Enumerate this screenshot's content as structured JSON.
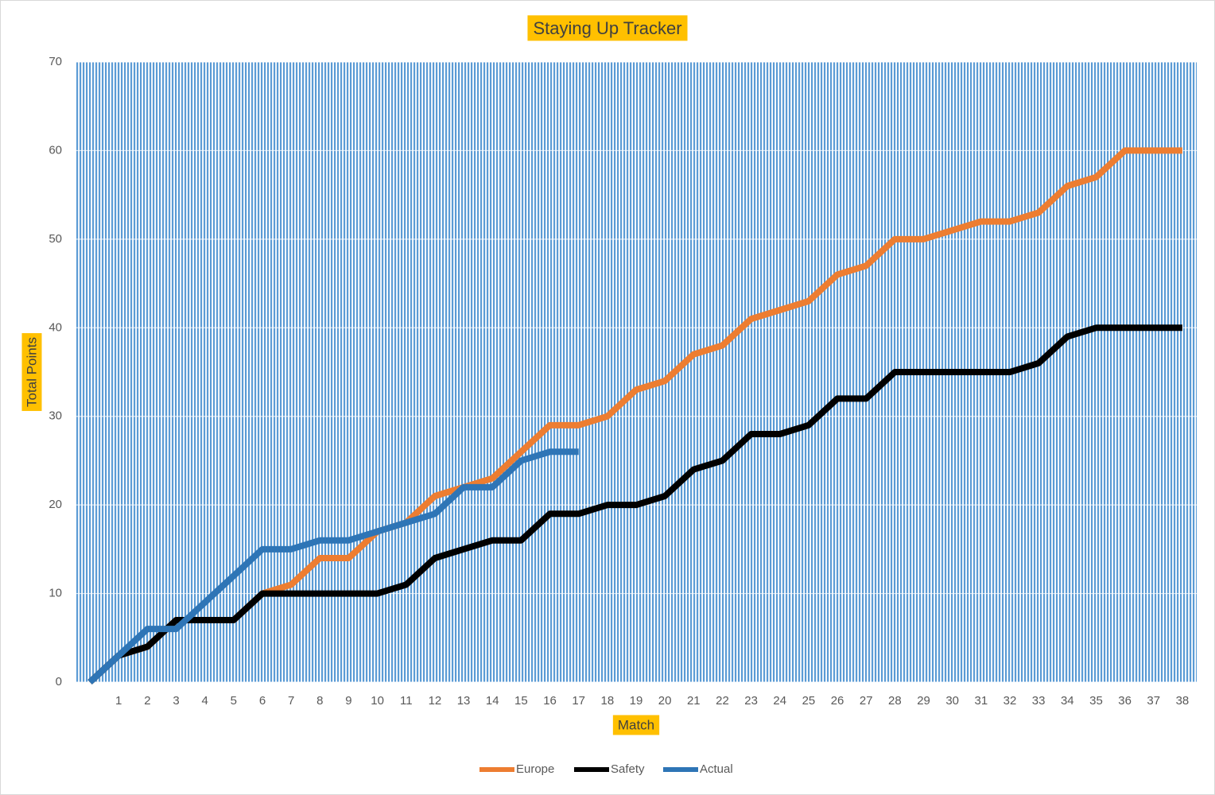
{
  "chart_data": {
    "type": "line",
    "title": "Staying Up Tracker",
    "x_label": "Match",
    "y_label": "Total Points",
    "categories": [
      null,
      1,
      2,
      3,
      4,
      5,
      6,
      7,
      8,
      9,
      10,
      11,
      12,
      13,
      14,
      15,
      16,
      17,
      18,
      19,
      20,
      21,
      22,
      23,
      24,
      25,
      26,
      27,
      28,
      29,
      30,
      31,
      32,
      33,
      34,
      35,
      36,
      37,
      38
    ],
    "series": [
      {
        "name": "Europe",
        "color": "#ed7d31",
        "values": [
          0,
          3,
          4,
          7,
          7,
          7,
          10,
          11,
          14,
          14,
          17,
          18,
          21,
          22,
          23,
          26,
          29,
          29,
          30,
          33,
          34,
          37,
          38,
          41,
          42,
          43,
          46,
          47,
          50,
          50,
          51,
          52,
          52,
          53,
          56,
          57,
          60,
          60,
          60
        ]
      },
      {
        "name": "Safety",
        "color": "#000000",
        "values": [
          0,
          3,
          4,
          7,
          7,
          7,
          10,
          10,
          10,
          10,
          10,
          11,
          14,
          15,
          16,
          16,
          19,
          19,
          20,
          20,
          21,
          24,
          25,
          28,
          28,
          29,
          32,
          32,
          35,
          35,
          35,
          35,
          35,
          36,
          39,
          40,
          40,
          40,
          40
        ]
      },
      {
        "name": "Actual",
        "color": "#2e75b6",
        "values": [
          0,
          3,
          6,
          6,
          9,
          12,
          15,
          15,
          16,
          16,
          17,
          18,
          19,
          22,
          22,
          25,
          26,
          26,
          null,
          null,
          null,
          null,
          null,
          null,
          null,
          null,
          null,
          null,
          null,
          null,
          null,
          null,
          null,
          null,
          null,
          null,
          null,
          null,
          null
        ]
      }
    ],
    "ylim": [
      0,
      70
    ],
    "yticks": [
      0,
      10,
      20,
      30,
      40,
      50,
      60,
      70
    ],
    "grid": true,
    "legend": "bottom"
  }
}
